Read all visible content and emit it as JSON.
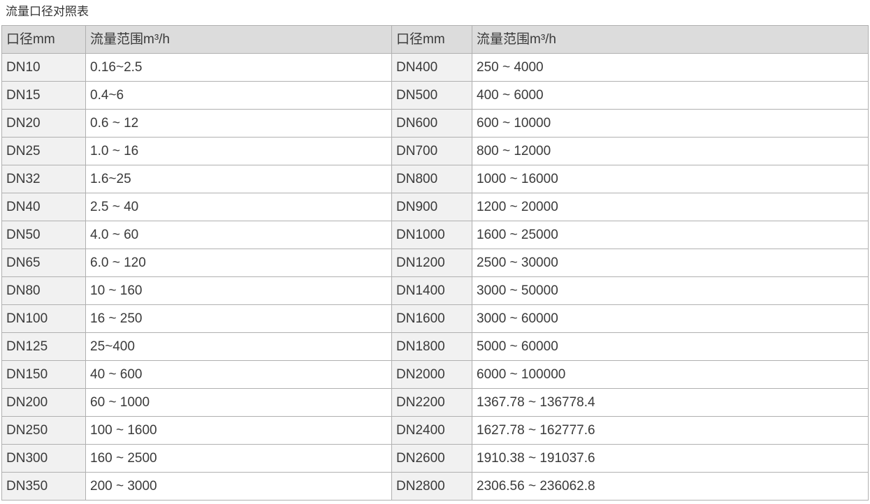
{
  "title": "流量口径对照表",
  "chart_data": {
    "type": "table",
    "title": "流量口径对照表",
    "columns": [
      "口径mm",
      "流量范围m³/h",
      "口径mm",
      "流量范围m³/h"
    ],
    "rows": [
      [
        "DN10",
        "0.16~2.5",
        "DN400",
        "250 ~ 4000"
      ],
      [
        "DN15",
        "0.4~6",
        "DN500",
        "400 ~ 6000"
      ],
      [
        "DN20",
        "0.6 ~ 12",
        "DN600",
        "600 ~ 10000"
      ],
      [
        "DN25",
        "1.0 ~ 16",
        "DN700",
        "800 ~ 12000"
      ],
      [
        "DN32",
        "1.6~25",
        "DN800",
        "1000 ~ 16000"
      ],
      [
        "DN40",
        "2.5 ~ 40",
        "DN900",
        "1200 ~ 20000"
      ],
      [
        "DN50",
        "4.0 ~ 60",
        "DN1000",
        "1600 ~ 25000"
      ],
      [
        "DN65",
        "6.0 ~ 120",
        "DN1200",
        "2500 ~ 30000"
      ],
      [
        "DN80",
        "10 ~ 160",
        "DN1400",
        "3000 ~ 50000"
      ],
      [
        "DN100",
        "16 ~ 250",
        "DN1600",
        "3000 ~ 60000"
      ],
      [
        "DN125",
        "25~400",
        "DN1800",
        "5000 ~ 60000"
      ],
      [
        "DN150",
        "40 ~ 600",
        "DN2000",
        "6000 ~ 100000"
      ],
      [
        "DN200",
        "60 ~ 1000",
        "DN2200",
        "1367.78 ~ 136778.4"
      ],
      [
        "DN250",
        "100 ~ 1600",
        "DN2400",
        "1627.78 ~ 162777.6"
      ],
      [
        "DN300",
        "160 ~ 2500",
        "DN2600",
        "1910.38 ~ 191037.6"
      ],
      [
        "DN350",
        "200 ~ 3000",
        "DN2800",
        "2306.56 ~ 236062.8"
      ]
    ]
  },
  "colors": {
    "header_bg": "#dcdcdc",
    "dn_cell_bg": "#f1f1f1",
    "flow_cell_bg": "#ffffff",
    "border": "#b0b0b0",
    "text": "#3a3a3a",
    "title_text": "#333333"
  }
}
